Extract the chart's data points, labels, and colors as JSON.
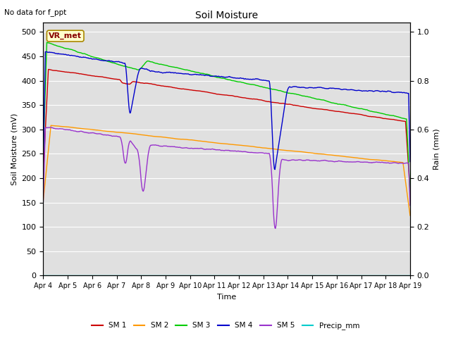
{
  "title": "Soil Moisture",
  "xlabel": "Time",
  "ylabel_left": "Soil Moisture (mV)",
  "ylabel_right": "Rain (mm)",
  "annotation": "No data for f_ppt",
  "station_label": "VR_met",
  "ylim_left": [
    0,
    520
  ],
  "ylim_right": [
    0.0,
    1.04
  ],
  "yticks_left": [
    0,
    50,
    100,
    150,
    200,
    250,
    300,
    350,
    400,
    450,
    500
  ],
  "yticks_right": [
    0.0,
    0.2,
    0.4,
    0.6,
    0.8,
    1.0
  ],
  "colors": {
    "SM1": "#cc0000",
    "SM2": "#ff9900",
    "SM3": "#00cc00",
    "SM4": "#0000cc",
    "SM5": "#9933cc",
    "Precip": "#00cccc"
  },
  "legend_labels": [
    "SM 1",
    "SM 2",
    "SM 3",
    "SM 4",
    "SM 5",
    "Precip_mm"
  ],
  "background_color": "#e0e0e0",
  "grid_color": "#ffffff",
  "figsize": [
    6.4,
    4.8
  ],
  "dpi": 100
}
